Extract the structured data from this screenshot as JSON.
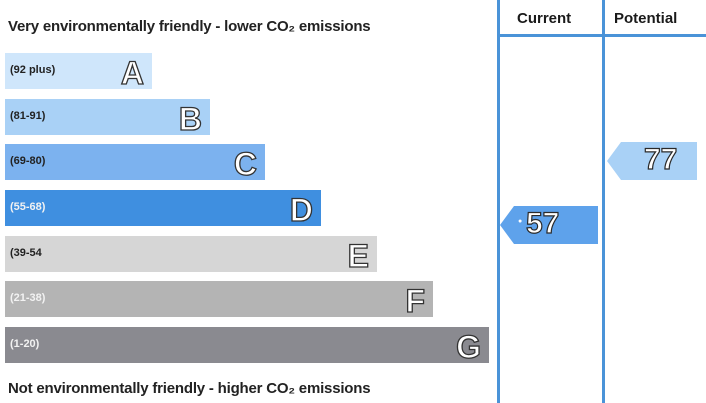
{
  "top_caption": "Very environmentally friendly - lower CO₂ emissions",
  "bottom_caption": "Not environmentally friendly - higher CO₂ emissions",
  "columns": {
    "current": "Current",
    "potential": "Potential"
  },
  "bands": [
    {
      "range": "(92 plus)",
      "letter": "A",
      "color": "#cfe6fb"
    },
    {
      "range": "(81-91)",
      "letter": "B",
      "color": "#a9d1f6"
    },
    {
      "range": "(69-80)",
      "letter": "C",
      "color": "#7cb2ef"
    },
    {
      "range": "(55-68)",
      "letter": "D",
      "color": "#3f8fe0"
    },
    {
      "range": "(39-54",
      "letter": "E",
      "color": "#d6d6d6"
    },
    {
      "range": "(21-38)",
      "letter": "F",
      "color": "#b4b4b4"
    },
    {
      "range": "(1-20)",
      "letter": "G",
      "color": "#8a8a90"
    }
  ],
  "current": {
    "value": "57",
    "color": "#5ea2eb"
  },
  "potential": {
    "value": "77",
    "color": "#a9d1f6"
  }
}
